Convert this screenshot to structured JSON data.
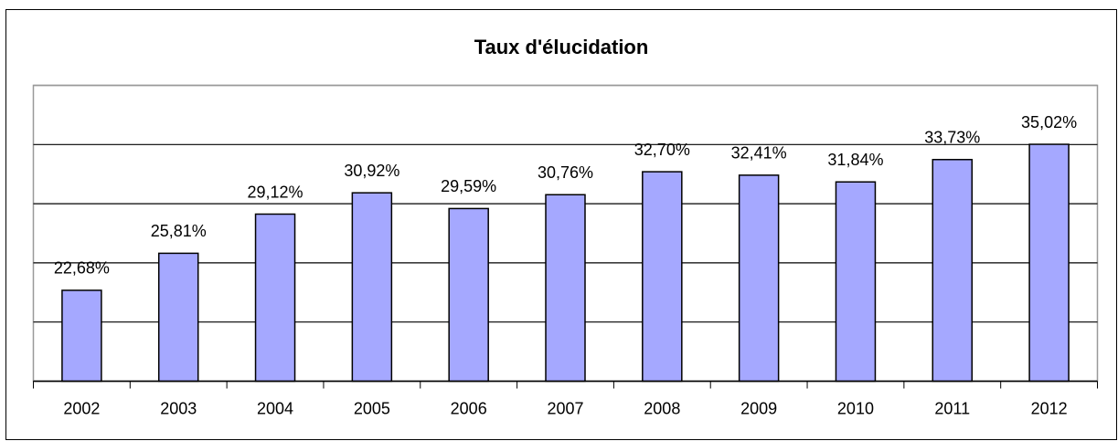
{
  "chart_data": {
    "type": "bar",
    "title": "Taux d'élucidation",
    "categories": [
      "2002",
      "2003",
      "2004",
      "2005",
      "2006",
      "2007",
      "2008",
      "2009",
      "2010",
      "2011",
      "2012"
    ],
    "values": [
      22.68,
      25.81,
      29.12,
      30.92,
      29.59,
      30.76,
      32.7,
      32.41,
      31.84,
      33.73,
      35.02
    ],
    "value_labels": [
      "22,68%",
      "25,81%",
      "29,12%",
      "30,92%",
      "29,59%",
      "30,76%",
      "32,70%",
      "32,41%",
      "31,84%",
      "33,73%",
      "35,02%"
    ],
    "color": "#a5a8ff",
    "ylim": [
      15,
      40
    ],
    "yticks": [
      15,
      20,
      25,
      30,
      35,
      40
    ],
    "grid": true
  }
}
